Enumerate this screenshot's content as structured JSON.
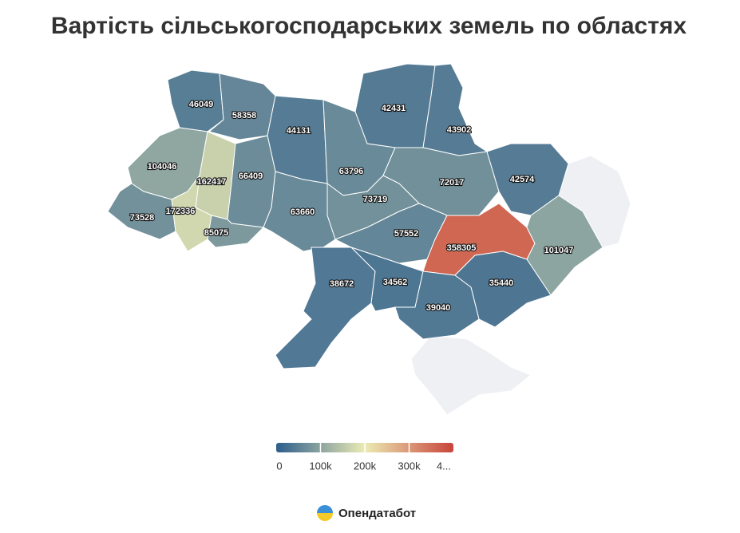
{
  "chart_data": {
    "type": "map",
    "title": "Вартість сільськогосподарських земель по областях",
    "values": [
      46049,
      58358,
      44131,
      42431,
      43902,
      104046,
      162417,
      66409,
      63796,
      72017,
      42574,
      73719,
      73528,
      172336,
      63660,
      85075,
      57552,
      358305,
      101047,
      38672,
      34562,
      35440,
      39040
    ],
    "colorscale": [
      "#2c5d8c",
      "#ecebb4",
      "#c8443a"
    ],
    "clim": [
      0,
      400000
    ],
    "colorbar_ticks": [
      0,
      {
        "value": 100000,
        "label": "100k"
      },
      {
        "value": 200000,
        "label": "200k"
      },
      {
        "value": 300000,
        "label": "300k"
      },
      {
        "value": 400000,
        "label": "4..."
      }
    ],
    "source": "Опендатабот"
  }
}
